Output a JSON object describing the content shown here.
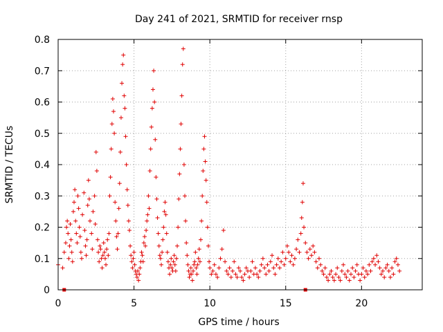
{
  "chart_data": {
    "type": "scatter",
    "title": "Day 241 of 2021, SRMTID for receiver rnsp",
    "xlabel": "GPS time / hours",
    "ylabel": "SRMTID / TECUs",
    "xlim": [
      0,
      24
    ],
    "ylim": [
      0,
      0.8
    ],
    "x_ticks": [
      0,
      5,
      10,
      15,
      20
    ],
    "x_tick_labels": [
      "0",
      "5",
      "10",
      "15",
      "20"
    ],
    "y_ticks": [
      0,
      0.1,
      0.2,
      0.3,
      0.4,
      0.5,
      0.6,
      0.7,
      0.8
    ],
    "y_tick_labels": [
      "0",
      "0.1",
      "0.2",
      "0.3",
      "0.4",
      "0.5",
      "0.6",
      "0.7",
      "0.8"
    ],
    "grid": true,
    "marker_color": "#e00000",
    "marker": "plus",
    "series": [
      {
        "name": "SRMTID",
        "points": [
          [
            0.0,
            0.08
          ],
          [
            0.3,
            0.07
          ],
          [
            0.4,
            0.12
          ],
          [
            0.5,
            0.15
          ],
          [
            0.55,
            0.2
          ],
          [
            0.6,
            0.22
          ],
          [
            0.65,
            0.18
          ],
          [
            0.7,
            0.1
          ],
          [
            0.75,
            0.14
          ],
          [
            0.8,
            0.21
          ],
          [
            0.85,
            0.16
          ],
          [
            0.9,
            0.12
          ],
          [
            0.95,
            0.09
          ],
          [
            1.0,
            0.25
          ],
          [
            1.05,
            0.28
          ],
          [
            1.1,
            0.32
          ],
          [
            1.15,
            0.22
          ],
          [
            1.2,
            0.18
          ],
          [
            1.25,
            0.15
          ],
          [
            1.3,
            0.3
          ],
          [
            1.35,
            0.26
          ],
          [
            1.4,
            0.2
          ],
          [
            1.45,
            0.17
          ],
          [
            1.5,
            0.12
          ],
          [
            1.55,
            0.1
          ],
          [
            1.6,
            0.24
          ],
          [
            1.7,
            0.31
          ],
          [
            1.75,
            0.19
          ],
          [
            1.8,
            0.14
          ],
          [
            1.85,
            0.11
          ],
          [
            1.9,
            0.16
          ],
          [
            1.95,
            0.27
          ],
          [
            2.0,
            0.35
          ],
          [
            2.05,
            0.29
          ],
          [
            2.1,
            0.22
          ],
          [
            2.2,
            0.18
          ],
          [
            2.25,
            0.13
          ],
          [
            2.3,
            0.25
          ],
          [
            2.4,
            0.3
          ],
          [
            2.45,
            0.21
          ],
          [
            2.5,
            0.44
          ],
          [
            2.55,
            0.38
          ],
          [
            2.6,
            0.16
          ],
          [
            2.65,
            0.12
          ],
          [
            2.7,
            0.09
          ],
          [
            2.75,
            0.14
          ],
          [
            2.8,
            0.13
          ],
          [
            2.85,
            0.1
          ],
          [
            2.9,
            0.07
          ],
          [
            2.95,
            0.11
          ],
          [
            3.0,
            0.15
          ],
          [
            3.05,
            0.12
          ],
          [
            3.1,
            0.1
          ],
          [
            3.15,
            0.08
          ],
          [
            3.2,
            0.13
          ],
          [
            3.25,
            0.16
          ],
          [
            3.3,
            0.11
          ],
          [
            3.35,
            0.18
          ],
          [
            3.4,
            0.3
          ],
          [
            3.45,
            0.36
          ],
          [
            3.5,
            0.45
          ],
          [
            3.55,
            0.53
          ],
          [
            3.6,
            0.61
          ],
          [
            3.65,
            0.57
          ],
          [
            3.7,
            0.5
          ],
          [
            3.75,
            0.28
          ],
          [
            3.8,
            0.22
          ],
          [
            3.85,
            0.17
          ],
          [
            3.9,
            0.13
          ],
          [
            3.95,
            0.18
          ],
          [
            4.0,
            0.26
          ],
          [
            4.05,
            0.34
          ],
          [
            4.1,
            0.44
          ],
          [
            4.15,
            0.55
          ],
          [
            4.2,
            0.66
          ],
          [
            4.25,
            0.72
          ],
          [
            4.3,
            0.75
          ],
          [
            4.35,
            0.62
          ],
          [
            4.4,
            0.58
          ],
          [
            4.45,
            0.49
          ],
          [
            4.5,
            0.4
          ],
          [
            4.55,
            0.32
          ],
          [
            4.6,
            0.27
          ],
          [
            4.65,
            0.22
          ],
          [
            4.7,
            0.19
          ],
          [
            4.75,
            0.14
          ],
          [
            4.8,
            0.11
          ],
          [
            4.85,
            0.09
          ],
          [
            4.9,
            0.07
          ],
          [
            4.95,
            0.1
          ],
          [
            5.0,
            0.12
          ],
          [
            5.05,
            0.08
          ],
          [
            5.1,
            0.06
          ],
          [
            5.15,
            0.05
          ],
          [
            5.2,
            0.04
          ],
          [
            5.25,
            0.06
          ],
          [
            5.3,
            0.03
          ],
          [
            5.35,
            0.05
          ],
          [
            5.4,
            0.07
          ],
          [
            5.45,
            0.09
          ],
          [
            5.5,
            0.12
          ],
          [
            5.55,
            0.11
          ],
          [
            5.6,
            0.09
          ],
          [
            5.65,
            0.15
          ],
          [
            5.7,
            0.17
          ],
          [
            5.75,
            0.14
          ],
          [
            5.8,
            0.19
          ],
          [
            5.85,
            0.22
          ],
          [
            5.9,
            0.24
          ],
          [
            5.95,
            0.3
          ],
          [
            6.0,
            0.26
          ],
          [
            6.05,
            0.38
          ],
          [
            6.1,
            0.45
          ],
          [
            6.15,
            0.52
          ],
          [
            6.2,
            0.58
          ],
          [
            6.25,
            0.64
          ],
          [
            6.3,
            0.7
          ],
          [
            6.35,
            0.6
          ],
          [
            6.4,
            0.48
          ],
          [
            6.45,
            0.36
          ],
          [
            6.5,
            0.29
          ],
          [
            6.55,
            0.23
          ],
          [
            6.6,
            0.18
          ],
          [
            6.65,
            0.14
          ],
          [
            6.7,
            0.11
          ],
          [
            6.75,
            0.1
          ],
          [
            6.8,
            0.08
          ],
          [
            6.85,
            0.12
          ],
          [
            6.9,
            0.16
          ],
          [
            6.95,
            0.2
          ],
          [
            7.0,
            0.25
          ],
          [
            7.05,
            0.28
          ],
          [
            7.1,
            0.24
          ],
          [
            7.15,
            0.18
          ],
          [
            7.2,
            0.12
          ],
          [
            7.25,
            0.09
          ],
          [
            7.3,
            0.07
          ],
          [
            7.35,
            0.05
          ],
          [
            7.4,
            0.08
          ],
          [
            7.45,
            0.1
          ],
          [
            7.5,
            0.07
          ],
          [
            7.55,
            0.06
          ],
          [
            7.6,
            0.09
          ],
          [
            7.65,
            0.11
          ],
          [
            7.7,
            0.08
          ],
          [
            7.75,
            0.06
          ],
          [
            7.8,
            0.1
          ],
          [
            7.85,
            0.14
          ],
          [
            7.9,
            0.2
          ],
          [
            7.95,
            0.29
          ],
          [
            8.0,
            0.37
          ],
          [
            8.05,
            0.45
          ],
          [
            8.1,
            0.53
          ],
          [
            8.15,
            0.62
          ],
          [
            8.2,
            0.72
          ],
          [
            8.25,
            0.77
          ],
          [
            8.3,
            0.4
          ],
          [
            8.35,
            0.3
          ],
          [
            8.4,
            0.22
          ],
          [
            8.45,
            0.15
          ],
          [
            8.5,
            0.11
          ],
          [
            8.55,
            0.08
          ],
          [
            8.6,
            0.06
          ],
          [
            8.65,
            0.04
          ],
          [
            8.7,
            0.05
          ],
          [
            8.75,
            0.07
          ],
          [
            8.8,
            0.05
          ],
          [
            8.85,
            0.03
          ],
          [
            8.9,
            0.06
          ],
          [
            8.95,
            0.08
          ],
          [
            9.0,
            0.09
          ],
          [
            9.05,
            0.12
          ],
          [
            9.1,
            0.07
          ],
          [
            9.15,
            0.05
          ],
          [
            9.2,
            0.08
          ],
          [
            9.25,
            0.1
          ],
          [
            9.3,
            0.13
          ],
          [
            9.35,
            0.09
          ],
          [
            9.4,
            0.16
          ],
          [
            9.45,
            0.22
          ],
          [
            9.5,
            0.3
          ],
          [
            9.55,
            0.38
          ],
          [
            9.6,
            0.45
          ],
          [
            9.65,
            0.49
          ],
          [
            9.7,
            0.41
          ],
          [
            9.75,
            0.35
          ],
          [
            9.8,
            0.28
          ],
          [
            9.85,
            0.2
          ],
          [
            9.9,
            0.14
          ],
          [
            9.95,
            0.09
          ],
          [
            10.0,
            0.07
          ],
          [
            10.1,
            0.05
          ],
          [
            10.2,
            0.06
          ],
          [
            10.3,
            0.08
          ],
          [
            10.4,
            0.05
          ],
          [
            10.5,
            0.04
          ],
          [
            10.6,
            0.07
          ],
          [
            10.7,
            0.1
          ],
          [
            10.8,
            0.13
          ],
          [
            10.9,
            0.19
          ],
          [
            11.0,
            0.09
          ],
          [
            11.1,
            0.06
          ],
          [
            11.2,
            0.05
          ],
          [
            11.3,
            0.07
          ],
          [
            11.4,
            0.04
          ],
          [
            11.5,
            0.06
          ],
          [
            11.6,
            0.09
          ],
          [
            11.7,
            0.05
          ],
          [
            11.8,
            0.04
          ],
          [
            11.9,
            0.07
          ],
          [
            12.0,
            0.06
          ],
          [
            12.1,
            0.04
          ],
          [
            12.2,
            0.03
          ],
          [
            12.3,
            0.05
          ],
          [
            12.4,
            0.07
          ],
          [
            12.5,
            0.06
          ],
          [
            12.6,
            0.04
          ],
          [
            12.7,
            0.06
          ],
          [
            12.8,
            0.09
          ],
          [
            12.9,
            0.05
          ],
          [
            13.0,
            0.07
          ],
          [
            13.1,
            0.05
          ],
          [
            13.2,
            0.04
          ],
          [
            13.3,
            0.06
          ],
          [
            13.4,
            0.08
          ],
          [
            13.5,
            0.1
          ],
          [
            13.6,
            0.07
          ],
          [
            13.7,
            0.05
          ],
          [
            13.8,
            0.08
          ],
          [
            13.9,
            0.06
          ],
          [
            14.0,
            0.09
          ],
          [
            14.1,
            0.11
          ],
          [
            14.2,
            0.07
          ],
          [
            14.3,
            0.05
          ],
          [
            14.4,
            0.08
          ],
          [
            14.5,
            0.1
          ],
          [
            14.6,
            0.07
          ],
          [
            14.7,
            0.09
          ],
          [
            14.8,
            0.12
          ],
          [
            14.9,
            0.08
          ],
          [
            15.0,
            0.1
          ],
          [
            15.1,
            0.14
          ],
          [
            15.2,
            0.12
          ],
          [
            15.3,
            0.09
          ],
          [
            15.4,
            0.11
          ],
          [
            15.5,
            0.08
          ],
          [
            15.6,
            0.1
          ],
          [
            15.7,
            0.13
          ],
          [
            15.8,
            0.16
          ],
          [
            15.9,
            0.12
          ],
          [
            16.0,
            0.18
          ],
          [
            16.05,
            0.23
          ],
          [
            16.1,
            0.28
          ],
          [
            16.15,
            0.34
          ],
          [
            16.2,
            0.2
          ],
          [
            16.3,
            0.15
          ],
          [
            16.4,
            0.12
          ],
          [
            16.5,
            0.1
          ],
          [
            16.6,
            0.13
          ],
          [
            16.7,
            0.11
          ],
          [
            16.8,
            0.14
          ],
          [
            16.9,
            0.12
          ],
          [
            17.0,
            0.09
          ],
          [
            17.1,
            0.07
          ],
          [
            17.2,
            0.1
          ],
          [
            17.3,
            0.08
          ],
          [
            17.4,
            0.06
          ],
          [
            17.5,
            0.05
          ],
          [
            17.6,
            0.07
          ],
          [
            17.7,
            0.04
          ],
          [
            17.8,
            0.03
          ],
          [
            17.9,
            0.05
          ],
          [
            18.0,
            0.06
          ],
          [
            18.1,
            0.04
          ],
          [
            18.2,
            0.03
          ],
          [
            18.3,
            0.05
          ],
          [
            18.4,
            0.07
          ],
          [
            18.5,
            0.04
          ],
          [
            18.6,
            0.03
          ],
          [
            18.7,
            0.06
          ],
          [
            18.8,
            0.08
          ],
          [
            18.9,
            0.05
          ],
          [
            19.0,
            0.04
          ],
          [
            19.1,
            0.06
          ],
          [
            19.2,
            0.03
          ],
          [
            19.3,
            0.05
          ],
          [
            19.4,
            0.07
          ],
          [
            19.5,
            0.04
          ],
          [
            19.6,
            0.06
          ],
          [
            19.7,
            0.08
          ],
          [
            19.8,
            0.05
          ],
          [
            19.9,
            0.03
          ],
          [
            20.0,
            0.05
          ],
          [
            20.1,
            0.07
          ],
          [
            20.2,
            0.04
          ],
          [
            20.3,
            0.06
          ],
          [
            20.4,
            0.05
          ],
          [
            20.5,
            0.08
          ],
          [
            20.6,
            0.06
          ],
          [
            20.7,
            0.09
          ],
          [
            20.8,
            0.1
          ],
          [
            20.9,
            0.08
          ],
          [
            21.0,
            0.11
          ],
          [
            21.1,
            0.09
          ],
          [
            21.2,
            0.07
          ],
          [
            21.3,
            0.05
          ],
          [
            21.4,
            0.06
          ],
          [
            21.5,
            0.04
          ],
          [
            21.6,
            0.07
          ],
          [
            21.7,
            0.08
          ],
          [
            21.8,
            0.06
          ],
          [
            21.9,
            0.04
          ],
          [
            22.0,
            0.07
          ],
          [
            22.1,
            0.05
          ],
          [
            22.2,
            0.09
          ],
          [
            22.3,
            0.1
          ],
          [
            22.4,
            0.08
          ],
          [
            22.5,
            0.06
          ]
        ]
      }
    ],
    "axis_markers": [
      0.4,
      16.3
    ]
  }
}
